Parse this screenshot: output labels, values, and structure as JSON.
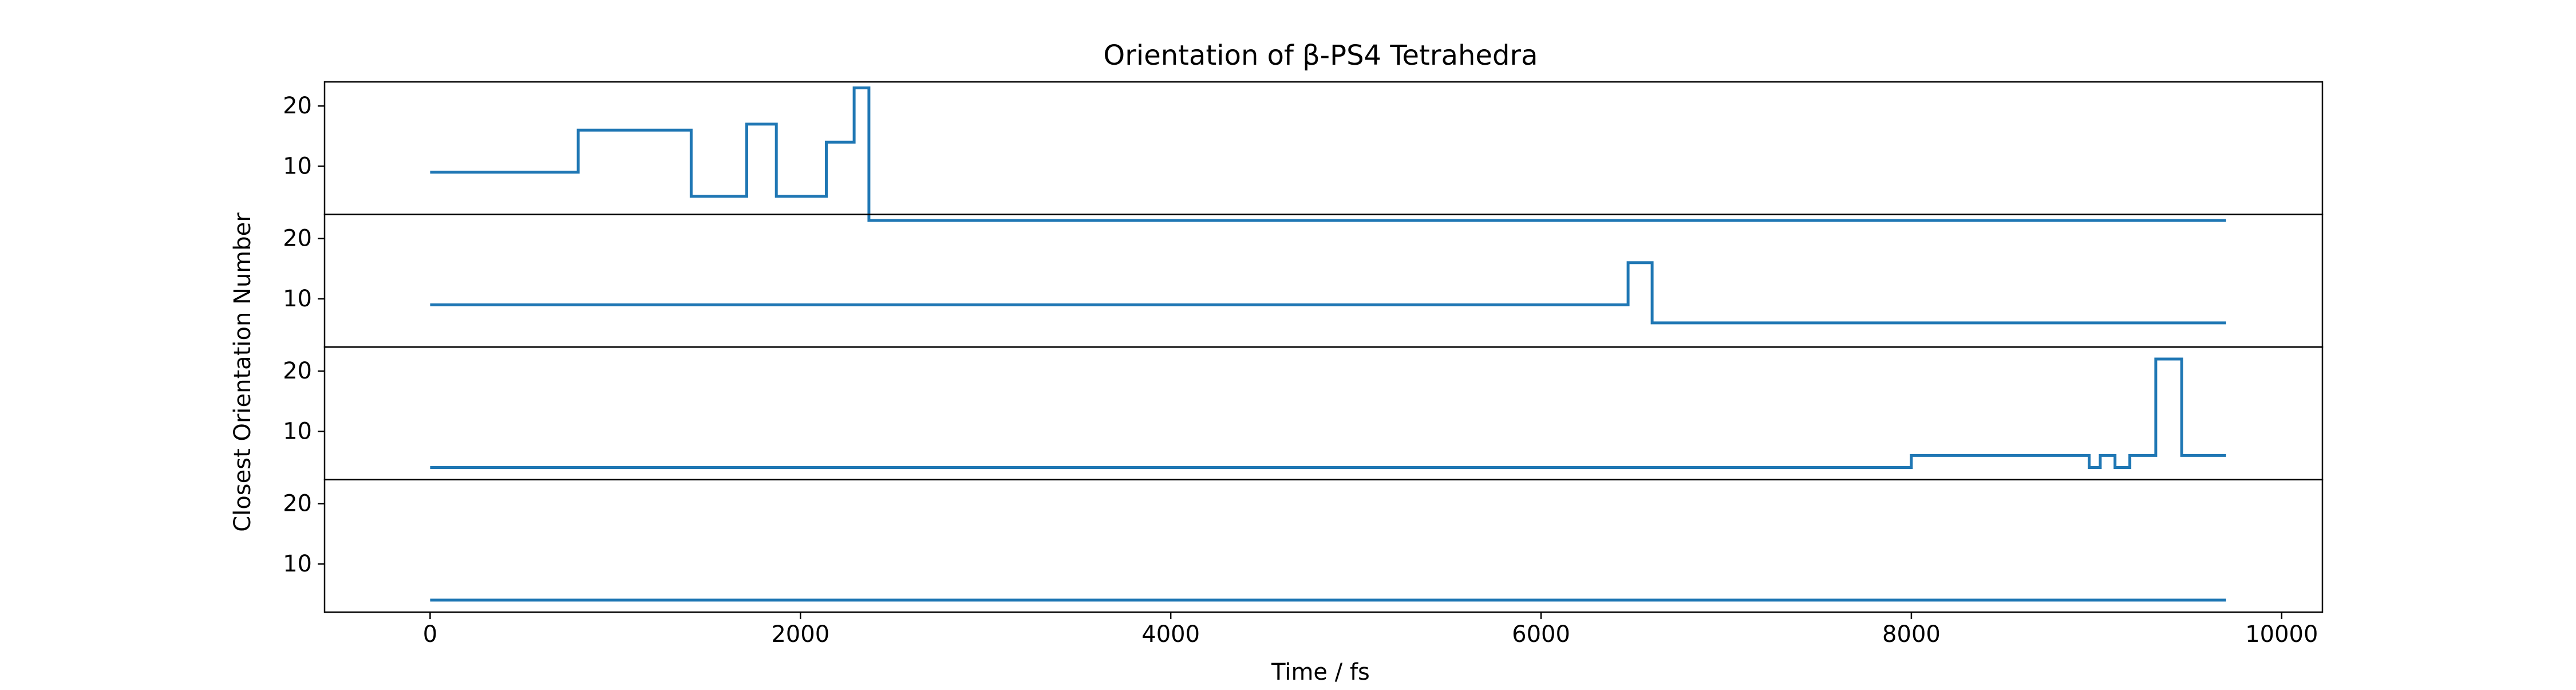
{
  "chart_data": {
    "type": "line",
    "title": "Orientation of β-PS4 Tetrahedra",
    "xlabel": "Time / fs",
    "ylabel": "Closest Orientation Number",
    "xlim": [
      -570,
      10220
    ],
    "ylim": [
      2,
      24
    ],
    "xticks": [
      0,
      2000,
      4000,
      6000,
      8000,
      10000
    ],
    "yticks": [
      10,
      20
    ],
    "grid": false,
    "legend": "none",
    "line_color": "#1f77b4",
    "panels": [
      {
        "name": "panel-1",
        "x": [
          0,
          800,
          800,
          1410,
          1410,
          1710,
          1710,
          1870,
          1870,
          2140,
          2140,
          2290,
          2290,
          2370,
          2370,
          9700
        ],
        "y": [
          9,
          9,
          16,
          16,
          5,
          5,
          17,
          17,
          5,
          5,
          14,
          14,
          23,
          23,
          1,
          1
        ]
      },
      {
        "name": "panel-2",
        "x": [
          0,
          6470,
          6470,
          6600,
          6600,
          9700
        ],
        "y": [
          9,
          9,
          16,
          16,
          6,
          6
        ]
      },
      {
        "name": "panel-3",
        "x": [
          0,
          8000,
          8000,
          8960,
          8960,
          9020,
          9020,
          9100,
          9100,
          9180,
          9180,
          9320,
          9320,
          9460,
          9460,
          9700
        ],
        "y": [
          4,
          4,
          6,
          6,
          4,
          4,
          6,
          6,
          4,
          4,
          6,
          6,
          22,
          22,
          6,
          6
        ]
      },
      {
        "name": "panel-4",
        "x": [
          0,
          9700
        ],
        "y": [
          4,
          4
        ]
      }
    ]
  }
}
